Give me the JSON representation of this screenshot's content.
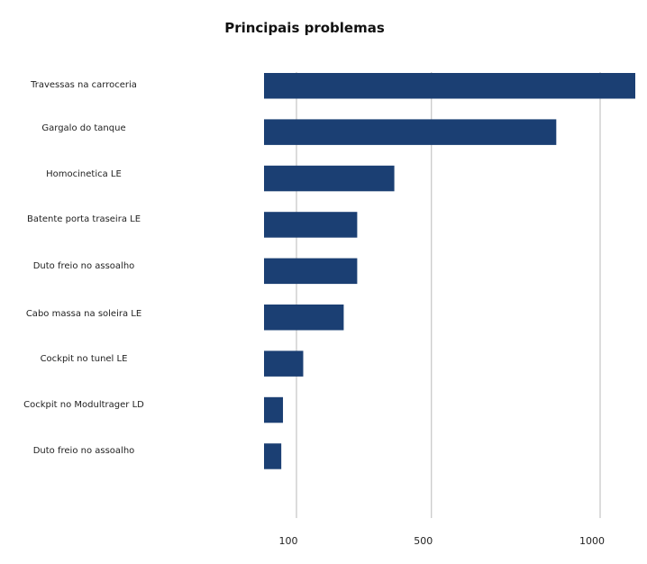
{
  "chart_data": {
    "type": "bar",
    "orientation": "horizontal",
    "title": "Principais problemas",
    "xlabel": "",
    "ylabel": "",
    "categories": [
      "Travessas na carroceria",
      "Gargalo do tanque",
      "Homocinetica LE",
      "Batente porta traseira LE",
      "Duto freio no assoalho",
      "Cabo massa na soleira LE",
      "Cockpit no tunel LE",
      "Cockpit no Modultrager LD",
      "Duto freio no assoalho"
    ],
    "values": [
      1220,
      870,
      390,
      280,
      280,
      240,
      120,
      60,
      55
    ],
    "xticks": [
      100,
      500,
      1000
    ],
    "grid": true,
    "bar_color": "#1b3f73"
  }
}
